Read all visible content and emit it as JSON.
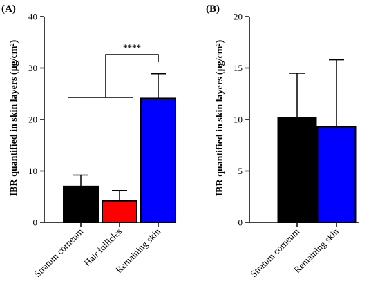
{
  "chart_data": [
    {
      "panel_label": "(A)",
      "type": "bar",
      "ylabel": "IBR quantified in skin layers (µg/cm²)",
      "ylim": [
        0,
        40
      ],
      "yticks": [
        0,
        10,
        20,
        30,
        40
      ],
      "categories": [
        "Stratum corneum",
        "Hair follicles",
        "Remaining skin"
      ],
      "values": [
        7.0,
        4.2,
        24.1
      ],
      "error": [
        2.2,
        2.0,
        4.8
      ],
      "colors": [
        "#000000",
        "#ff0000",
        "#0000ff"
      ],
      "significance": {
        "label": "****",
        "from": [
          "Stratum corneum",
          "Hair follicles"
        ],
        "to": "Remaining skin"
      }
    },
    {
      "panel_label": "(B)",
      "type": "bar",
      "ylabel": "IBR quantified in skin layers (µg/cm²)",
      "ylim": [
        0,
        20
      ],
      "yticks": [
        0,
        5,
        10,
        15,
        20
      ],
      "categories": [
        "Stratum corneum",
        "Remaining skin"
      ],
      "values": [
        10.2,
        9.3
      ],
      "error": [
        4.3,
        6.5
      ],
      "colors": [
        "#000000",
        "#0000ff"
      ]
    }
  ]
}
